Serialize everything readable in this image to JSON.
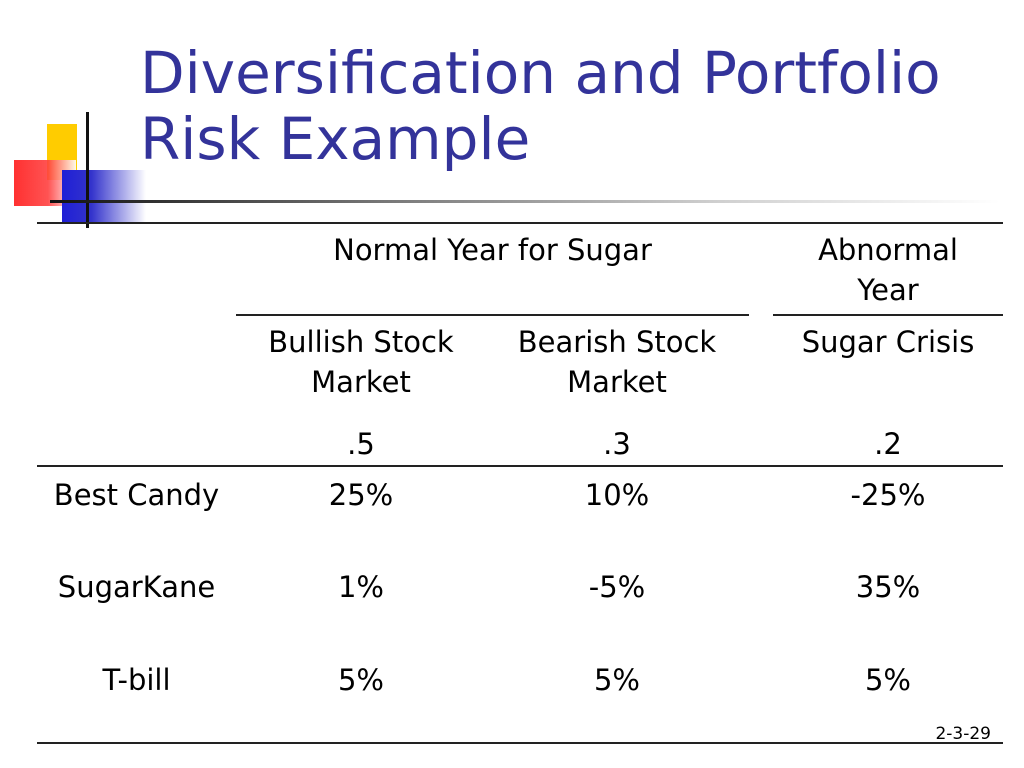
{
  "slide": {
    "title_line1": "Diversification and Portfolio",
    "title_line2": "Risk Example",
    "slide_number": "2-3-29"
  },
  "table": {
    "group_headers": {
      "normal": "Normal Year for Sugar",
      "abnormal_line1": "Abnormal",
      "abnormal_line2": "Year"
    },
    "scenarios": [
      {
        "line1": "Bullish Stock",
        "line2": "Market",
        "probability": ".5"
      },
      {
        "line1": "Bearish Stock",
        "line2": "Market",
        "probability": ".3"
      },
      {
        "line1": "Sugar Crisis",
        "line2": "",
        "probability": ".2"
      }
    ],
    "rows": [
      {
        "label": "Best Candy",
        "values": [
          "25%",
          "10%",
          "-25%"
        ]
      },
      {
        "label": "SugarKane",
        "values": [
          "1%",
          "-5%",
          "35%"
        ]
      },
      {
        "label": "T-bill",
        "values": [
          "5%",
          "5%",
          "5%"
        ]
      }
    ]
  }
}
